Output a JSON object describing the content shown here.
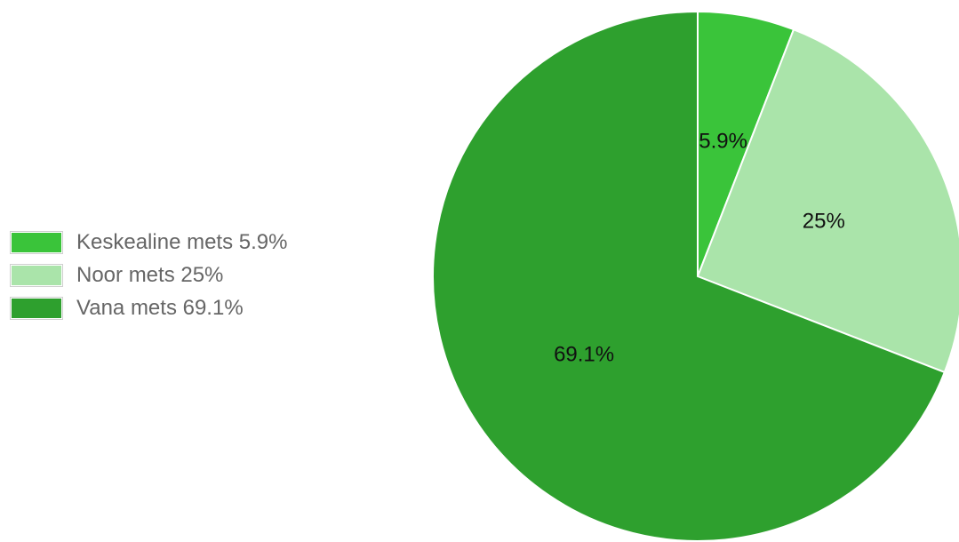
{
  "chart_data": {
    "type": "pie",
    "categories": [
      "Keskealine mets",
      "Noor mets",
      "Vana mets"
    ],
    "values": [
      5.9,
      25,
      69.1
    ],
    "colors": [
      "#3ac43a",
      "#aae4aa",
      "#2ea02e"
    ],
    "slice_labels": [
      "5.9%",
      "25%",
      "69.1%"
    ],
    "legend_labels": [
      "Keskealine mets 5.9%",
      "Noor mets 25%",
      "Vana mets 69.1%"
    ],
    "legend_position": "left",
    "start_angle": "12 o'clock",
    "direction": "clockwise"
  }
}
